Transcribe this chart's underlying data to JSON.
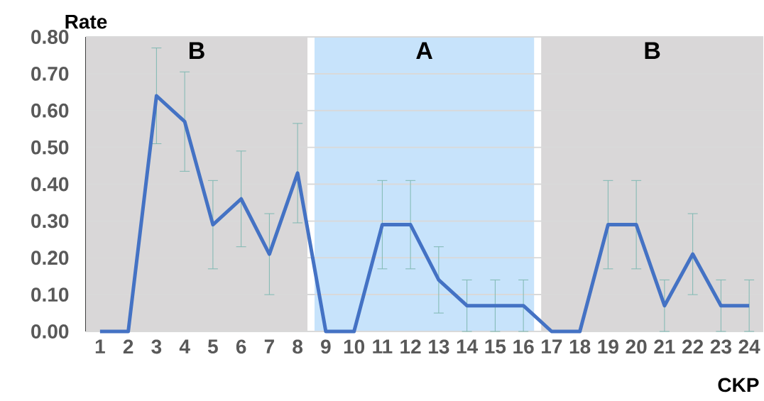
{
  "chart_data": {
    "type": "line",
    "xlabel": "CKP",
    "ylabel": "Rate",
    "x": [
      1,
      2,
      3,
      4,
      5,
      6,
      7,
      8,
      9,
      10,
      11,
      12,
      13,
      14,
      15,
      16,
      17,
      18,
      19,
      20,
      21,
      22,
      23,
      24
    ],
    "values": [
      0,
      0,
      0.64,
      0.57,
      0.29,
      0.36,
      0.21,
      0.43,
      0,
      0,
      0.29,
      0.29,
      0.14,
      0.07,
      0.07,
      0.07,
      0,
      0,
      0.29,
      0.29,
      0.07,
      0.21,
      0.07,
      0.07
    ],
    "errors": [
      null,
      null,
      0.13,
      0.135,
      0.12,
      0.13,
      0.11,
      0.135,
      null,
      null,
      0.12,
      0.12,
      0.09,
      0.07,
      0.07,
      0.07,
      null,
      null,
      0.12,
      0.12,
      0.07,
      0.11,
      0.07,
      0.07
    ],
    "color": "#4472c4",
    "xlim": [
      0.5,
      24.5
    ],
    "xticks": [
      1,
      2,
      3,
      4,
      5,
      6,
      7,
      8,
      9,
      10,
      11,
      12,
      13,
      14,
      15,
      16,
      17,
      18,
      19,
      20,
      21,
      22,
      23,
      24
    ],
    "ylim": [
      0,
      0.8
    ],
    "yticks": [
      {
        "value": 0,
        "label": "0.00"
      },
      {
        "value": 0.1,
        "label": "0.10"
      },
      {
        "value": 0.2,
        "label": "0.20"
      },
      {
        "value": 0.3,
        "label": "0.30"
      },
      {
        "value": 0.4,
        "label": "0.40"
      },
      {
        "value": 0.5,
        "label": "0.50"
      },
      {
        "value": 0.6,
        "label": "0.60"
      },
      {
        "value": 0.7,
        "label": "0.70"
      },
      {
        "value": 0.8,
        "label": "0.80"
      }
    ],
    "grid": "y",
    "bands": [
      {
        "axis": "x",
        "from": 0.5,
        "to": 8.35,
        "label": "B",
        "color": "#d9d7d8"
      },
      {
        "axis": "x",
        "from": 8.6,
        "to": 16.38,
        "label": "A",
        "color": "#c7e3fb"
      },
      {
        "axis": "x",
        "from": 16.63,
        "to": 24.5,
        "label": "B",
        "color": "#d9d7d8"
      }
    ]
  }
}
